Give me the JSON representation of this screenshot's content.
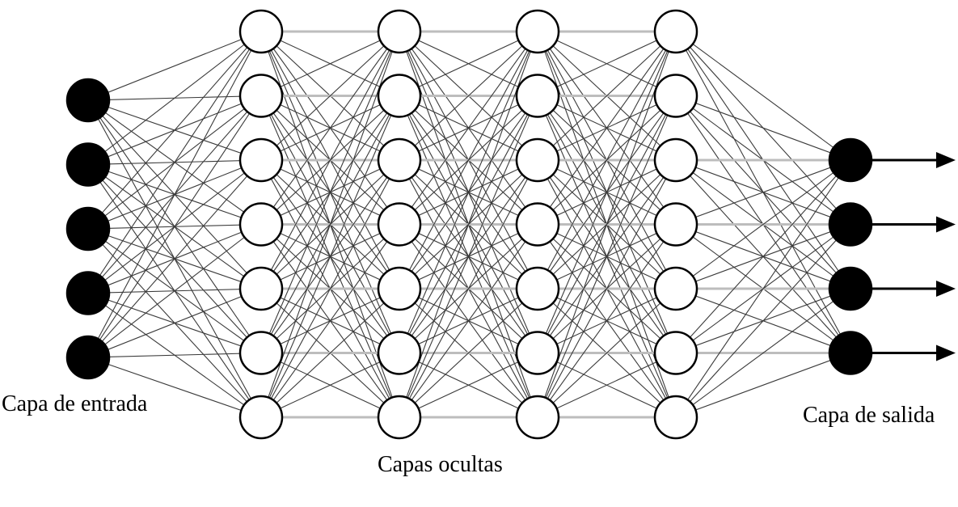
{
  "labels": {
    "input_layer": "Capa de entrada",
    "hidden_layers": "Capas ocultas",
    "output_layer": "Capa de salida"
  },
  "network": {
    "layers": [
      {
        "role": "input",
        "neurons": 5,
        "fill": "#000000"
      },
      {
        "role": "hidden",
        "neurons": 7,
        "fill": "#ffffff"
      },
      {
        "role": "hidden",
        "neurons": 7,
        "fill": "#ffffff"
      },
      {
        "role": "hidden",
        "neurons": 7,
        "fill": "#ffffff"
      },
      {
        "role": "hidden",
        "neurons": 7,
        "fill": "#ffffff"
      },
      {
        "role": "output",
        "neurons": 4,
        "fill": "#000000"
      }
    ],
    "fully_connected": true,
    "output_arrows": true,
    "colors": {
      "connection": "#3a3a3a",
      "neuron_stroke": "#000000",
      "arrow": "#000000"
    }
  }
}
